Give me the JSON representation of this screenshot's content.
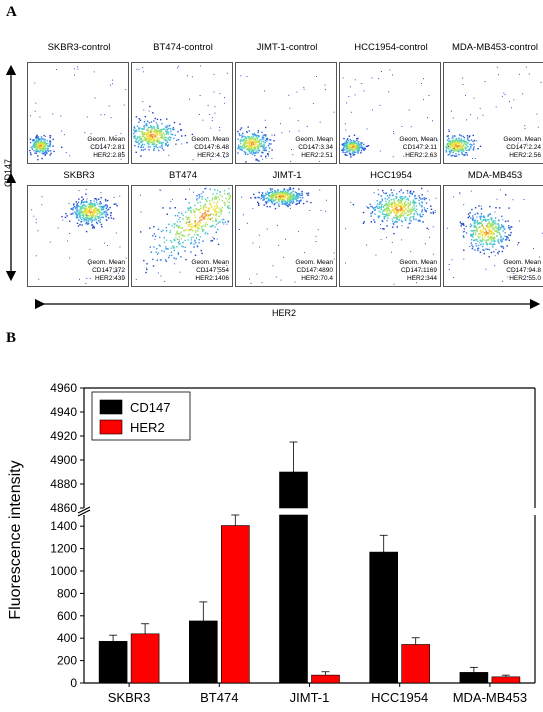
{
  "panel_a": {
    "letter": "A",
    "y_axis_label": "CD147",
    "x_axis_label": "HER2",
    "plots": [
      {
        "title": "SKBR3-control",
        "stats": [
          "Geom. Mean",
          "CD147:2.81",
          "HER2:2.85"
        ]
      },
      {
        "title": "BT474-control",
        "stats": [
          "Geom. Mean",
          "CD147:6.48",
          "HER2:4.73"
        ]
      },
      {
        "title": "JIMT-1-control",
        "stats": [
          "Geom. Mean",
          "CD147:3.34",
          "HER2:2.51"
        ]
      },
      {
        "title": "HCC1954-control",
        "stats": [
          "Geom. Mean",
          "CD147:2.11",
          "HER2:2.63"
        ]
      },
      {
        "title": "MDA-MB453-control",
        "stats": [
          "Geom. Mean",
          "CD147:2.24",
          "HER2:2.56"
        ]
      },
      {
        "title": "SKBR3",
        "stats": [
          "Geom. Mean",
          "CD147:372",
          "HER2:439"
        ]
      },
      {
        "title": "BT474",
        "stats": [
          "Geom. Mean",
          "CD147:554",
          "HER2:1406"
        ]
      },
      {
        "title": "JIMT-1",
        "stats": [
          "Geom. Mean",
          "CD147:4890",
          "HER2:70.4"
        ]
      },
      {
        "title": "HCC1954",
        "stats": [
          "Geom. Mean",
          "CD147:1169",
          "HER2:344"
        ]
      },
      {
        "title": "MDA-MB453",
        "stats": [
          "Geom. Mean",
          "CD147:94.8",
          "HER2:55.0"
        ]
      }
    ]
  },
  "panel_b": {
    "letter": "B"
  },
  "chart_data": {
    "type": "bar",
    "ylabel": "Fluorescence intensity",
    "xlabel": "",
    "categories": [
      "SKBR3",
      "BT474",
      "JIMT-1",
      "HCC1954",
      "MDA-MB453"
    ],
    "series": [
      {
        "name": "CD147",
        "color": "#000000",
        "values": [
          372,
          554,
          4890,
          1169,
          94.8
        ],
        "errors": [
          55,
          170,
          25,
          150,
          45
        ]
      },
      {
        "name": "HER2",
        "color": "#ff0000",
        "values": [
          439,
          1406,
          70.4,
          344,
          55
        ],
        "errors": [
          90,
          140,
          30,
          60,
          15
        ]
      }
    ],
    "broken_axis": true,
    "ylim_lower": [
      0,
      1500
    ],
    "yticks_lower": [
      "0",
      "200",
      "400",
      "600",
      "800",
      "1000",
      "1200",
      "1400"
    ],
    "ylim_upper": [
      4860,
      4960
    ],
    "yticks_upper": [
      "4860",
      "4880",
      "4900",
      "4920",
      "4940",
      "4960"
    ],
    "legend_position": "top-left",
    "grid": false
  }
}
